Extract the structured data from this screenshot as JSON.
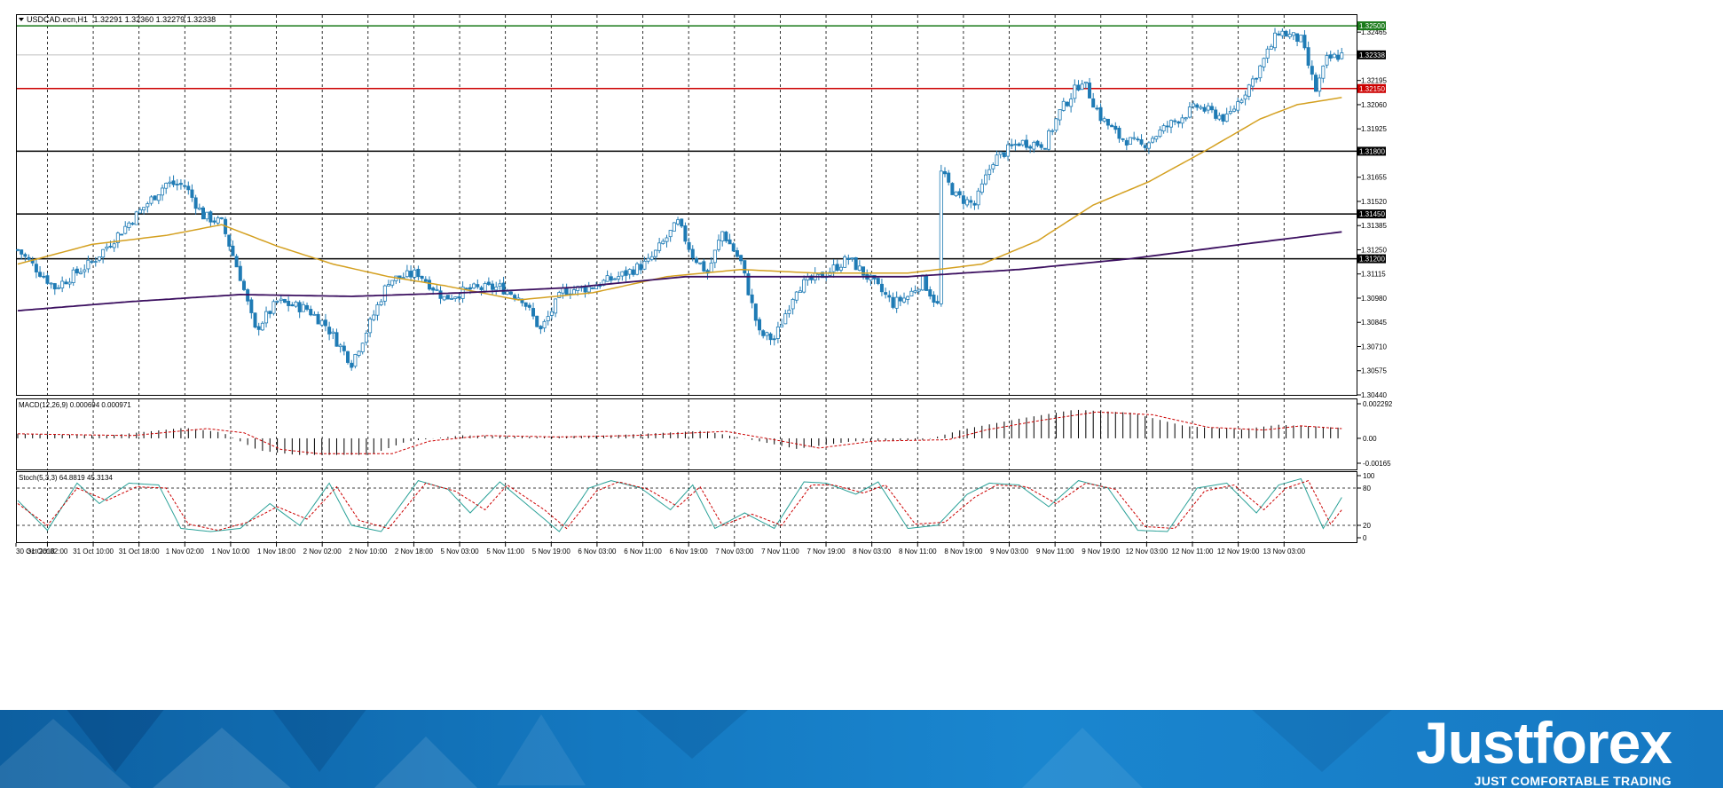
{
  "window": {
    "title": "USDCAD.ecn,H1",
    "ohlc": "1.32291 1.32360 1.32279 1.32338"
  },
  "price_axis": [
    "1.32465",
    "1.32195",
    "1.32060",
    "1.31925",
    "1.31655",
    "1.31520",
    "1.31385",
    "1.31250",
    "1.31115",
    "1.30980",
    "1.30845",
    "1.30710",
    "1.30575",
    "1.30440"
  ],
  "horizontal_lines": [
    {
      "price": 1.325,
      "label": "1.32500",
      "color": "#1a7a1a"
    },
    {
      "price": 1.32338,
      "label": "1.32338",
      "color": "#c0c0c0",
      "current": true
    },
    {
      "price": 1.3215,
      "label": "1.32150",
      "color": "#cc0000"
    },
    {
      "price": 1.318,
      "label": "1.31800",
      "color": "#000000"
    },
    {
      "price": 1.3145,
      "label": "1.31450",
      "color": "#000000"
    },
    {
      "price": 1.312,
      "label": "1.31200",
      "color": "#000000"
    }
  ],
  "time_axis": [
    "30 Oct 2018",
    "31 Oct 02:00",
    "31 Oct 10:00",
    "31 Oct 18:00",
    "1 Nov 02:00",
    "1 Nov 10:00",
    "1 Nov 18:00",
    "2 Nov 02:00",
    "2 Nov 10:00",
    "2 Nov 18:00",
    "5 Nov 03:00",
    "5 Nov 11:00",
    "5 Nov 19:00",
    "6 Nov 03:00",
    "6 Nov 11:00",
    "6 Nov 19:00",
    "7 Nov 03:00",
    "7 Nov 11:00",
    "7 Nov 19:00",
    "8 Nov 03:00",
    "8 Nov 11:00",
    "8 Nov 19:00",
    "9 Nov 03:00",
    "9 Nov 11:00",
    "9 Nov 19:00",
    "12 Nov 03:00",
    "12 Nov 11:00",
    "12 Nov 19:00",
    "13 Nov 03:00"
  ],
  "macd": {
    "label": "MACD(12,26,9) 0.000694 0.000971",
    "axis": [
      "0.002292",
      "0.00",
      "-0.00165"
    ]
  },
  "stoch": {
    "label": "Stoch(5,3,3) 64.8819 45.3134",
    "axis": [
      "100",
      "80",
      "20",
      "0"
    ]
  },
  "colors": {
    "candle": "#1f7bb5",
    "ma_fast": "#d4a020",
    "ma_slow": "#3c1060",
    "macd_signal": "#cc0000",
    "stoch_main": "#2aa198",
    "stoch_signal": "#cc0000"
  },
  "chart_data": {
    "type": "candlestick",
    "symbol": "USDCAD.ecn",
    "timeframe": "H1",
    "ylim": [
      1.3044,
      1.3256
    ],
    "anchors": [
      [
        0,
        1.3125
      ],
      [
        10,
        1.3104
      ],
      [
        20,
        1.3118
      ],
      [
        30,
        1.314
      ],
      [
        40,
        1.3162
      ],
      [
        45,
        1.3161
      ],
      [
        50,
        1.3144
      ],
      [
        55,
        1.314
      ],
      [
        60,
        1.311
      ],
      [
        64,
        1.308
      ],
      [
        70,
        1.3096
      ],
      [
        78,
        1.3092
      ],
      [
        83,
        1.3083
      ],
      [
        90,
        1.3062
      ],
      [
        95,
        1.3084
      ],
      [
        100,
        1.3108
      ],
      [
        108,
        1.3112
      ],
      [
        115,
        1.3098
      ],
      [
        122,
        1.3103
      ],
      [
        130,
        1.3104
      ],
      [
        136,
        1.3098
      ],
      [
        141,
        1.308
      ],
      [
        147,
        1.3102
      ],
      [
        154,
        1.3104
      ],
      [
        162,
        1.311
      ],
      [
        170,
        1.3118
      ],
      [
        178,
        1.314
      ],
      [
        182,
        1.3122
      ],
      [
        186,
        1.3112
      ],
      [
        190,
        1.3135
      ],
      [
        195,
        1.3118
      ],
      [
        200,
        1.3078
      ],
      [
        204,
        1.3075
      ],
      [
        210,
        1.3104
      ],
      [
        218,
        1.3112
      ],
      [
        224,
        1.312
      ],
      [
        230,
        1.3108
      ],
      [
        236,
        1.3095
      ],
      [
        240,
        1.3099
      ],
      [
        244,
        1.3108
      ],
      [
        248,
        1.3094
      ],
      [
        249,
        1.3168
      ],
      [
        253,
        1.3155
      ],
      [
        258,
        1.315
      ],
      [
        263,
        1.3175
      ],
      [
        270,
        1.3185
      ],
      [
        277,
        1.3184
      ],
      [
        281,
        1.3202
      ],
      [
        287,
        1.322
      ],
      [
        292,
        1.3199
      ],
      [
        297,
        1.3188
      ],
      [
        303,
        1.3183
      ],
      [
        310,
        1.3194
      ],
      [
        318,
        1.3205
      ],
      [
        326,
        1.3198
      ],
      [
        334,
        1.3223
      ],
      [
        340,
        1.3247
      ],
      [
        346,
        1.3242
      ],
      [
        350,
        1.3214
      ],
      [
        353,
        1.3231
      ],
      [
        357,
        1.3234
      ]
    ],
    "ma_fast_anchors": [
      [
        0,
        1.3117
      ],
      [
        20,
        1.3128
      ],
      [
        40,
        1.3133
      ],
      [
        55,
        1.3139
      ],
      [
        70,
        1.3127
      ],
      [
        85,
        1.3117
      ],
      [
        100,
        1.311
      ],
      [
        115,
        1.3105
      ],
      [
        135,
        1.3097
      ],
      [
        155,
        1.3101
      ],
      [
        175,
        1.311
      ],
      [
        195,
        1.3114
      ],
      [
        215,
        1.3112
      ],
      [
        240,
        1.3112
      ],
      [
        260,
        1.3117
      ],
      [
        275,
        1.313
      ],
      [
        290,
        1.315
      ],
      [
        305,
        1.3163
      ],
      [
        320,
        1.318
      ],
      [
        335,
        1.3198
      ],
      [
        345,
        1.3206
      ],
      [
        357,
        1.321
      ]
    ],
    "ma_slow_anchors": [
      [
        0,
        1.3091
      ],
      [
        30,
        1.3096
      ],
      [
        60,
        1.31
      ],
      [
        90,
        1.3099
      ],
      [
        120,
        1.3101
      ],
      [
        150,
        1.3104
      ],
      [
        180,
        1.311
      ],
      [
        210,
        1.311
      ],
      [
        240,
        1.311
      ],
      [
        270,
        1.3114
      ],
      [
        300,
        1.312
      ],
      [
        330,
        1.3128
      ],
      [
        357,
        1.3135
      ]
    ],
    "macd_hist_anchors": [
      [
        0,
        0.0003
      ],
      [
        25,
        0.0002
      ],
      [
        45,
        0.0007
      ],
      [
        55,
        0.0004
      ],
      [
        65,
        -0.0008
      ],
      [
        75,
        -0.0011
      ],
      [
        95,
        -0.0011
      ],
      [
        105,
        -0.0002
      ],
      [
        120,
        0.0002
      ],
      [
        140,
        0.0001
      ],
      [
        160,
        0.0002
      ],
      [
        185,
        0.0005
      ],
      [
        200,
        -0.0002
      ],
      [
        210,
        -0.0007
      ],
      [
        225,
        -0.0002
      ],
      [
        245,
        -0.0001
      ],
      [
        255,
        0.0006
      ],
      [
        270,
        0.0013
      ],
      [
        285,
        0.0019
      ],
      [
        300,
        0.0017
      ],
      [
        315,
        0.0008
      ],
      [
        330,
        0.0006
      ],
      [
        340,
        0.0009
      ],
      [
        357,
        0.0007
      ]
    ],
    "stoch_main_anchors": [
      [
        0,
        60
      ],
      [
        8,
        12
      ],
      [
        16,
        88
      ],
      [
        22,
        55
      ],
      [
        30,
        88
      ],
      [
        38,
        85
      ],
      [
        44,
        15
      ],
      [
        52,
        10
      ],
      [
        60,
        15
      ],
      [
        68,
        55
      ],
      [
        76,
        20
      ],
      [
        84,
        88
      ],
      [
        90,
        20
      ],
      [
        98,
        10
      ],
      [
        108,
        92
      ],
      [
        116,
        78
      ],
      [
        122,
        40
      ],
      [
        130,
        90
      ],
      [
        140,
        40
      ],
      [
        146,
        10
      ],
      [
        154,
        80
      ],
      [
        160,
        92
      ],
      [
        168,
        80
      ],
      [
        176,
        45
      ],
      [
        182,
        85
      ],
      [
        188,
        15
      ],
      [
        196,
        40
      ],
      [
        204,
        15
      ],
      [
        212,
        90
      ],
      [
        218,
        88
      ],
      [
        226,
        70
      ],
      [
        232,
        90
      ],
      [
        240,
        15
      ],
      [
        248,
        20
      ],
      [
        256,
        70
      ],
      [
        262,
        88
      ],
      [
        270,
        85
      ],
      [
        278,
        50
      ],
      [
        286,
        92
      ],
      [
        294,
        80
      ],
      [
        302,
        12
      ],
      [
        310,
        10
      ],
      [
        318,
        80
      ],
      [
        326,
        88
      ],
      [
        334,
        40
      ],
      [
        340,
        85
      ],
      [
        346,
        95
      ],
      [
        352,
        15
      ],
      [
        357,
        65
      ]
    ],
    "stoch_signal_anchors": [
      [
        0,
        55
      ],
      [
        8,
        20
      ],
      [
        16,
        80
      ],
      [
        24,
        60
      ],
      [
        32,
        82
      ],
      [
        40,
        80
      ],
      [
        46,
        22
      ],
      [
        54,
        12
      ],
      [
        62,
        25
      ],
      [
        70,
        50
      ],
      [
        78,
        30
      ],
      [
        86,
        82
      ],
      [
        92,
        28
      ],
      [
        100,
        15
      ],
      [
        110,
        88
      ],
      [
        118,
        75
      ],
      [
        126,
        45
      ],
      [
        132,
        85
      ],
      [
        142,
        45
      ],
      [
        148,
        15
      ],
      [
        156,
        75
      ],
      [
        162,
        90
      ],
      [
        170,
        78
      ],
      [
        178,
        50
      ],
      [
        184,
        82
      ],
      [
        190,
        20
      ],
      [
        198,
        38
      ],
      [
        206,
        20
      ],
      [
        214,
        85
      ],
      [
        220,
        85
      ],
      [
        228,
        72
      ],
      [
        234,
        85
      ],
      [
        242,
        22
      ],
      [
        250,
        25
      ],
      [
        258,
        65
      ],
      [
        264,
        85
      ],
      [
        272,
        82
      ],
      [
        280,
        55
      ],
      [
        288,
        88
      ],
      [
        296,
        78
      ],
      [
        304,
        18
      ],
      [
        312,
        15
      ],
      [
        320,
        75
      ],
      [
        328,
        85
      ],
      [
        336,
        45
      ],
      [
        342,
        80
      ],
      [
        348,
        92
      ],
      [
        354,
        22
      ],
      [
        357,
        45
      ]
    ]
  },
  "brand": {
    "name": "Justforex",
    "tagline": "JUST COMFORTABLE TRADING"
  }
}
